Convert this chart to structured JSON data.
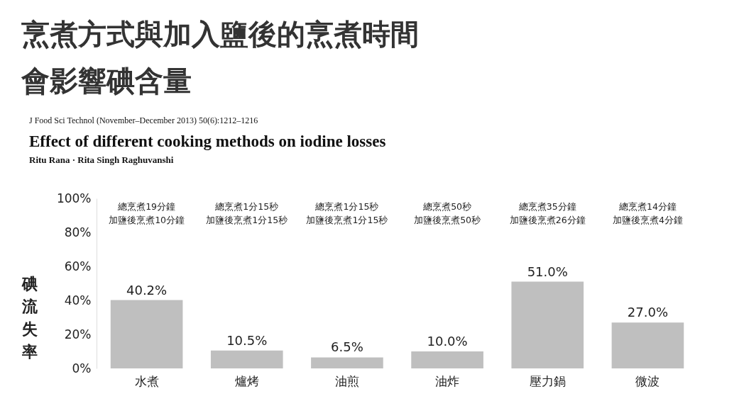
{
  "chart_data": {
    "type": "bar",
    "title": "烹煮方式與加入鹽後的烹煮時間",
    "subtitle": "會影響碘含量",
    "ylabel": "碘流失率",
    "categories": [
      "水煮",
      "爐烤",
      "油煎",
      "油炸",
      "壓力鍋",
      "微波"
    ],
    "values": [
      40.2,
      10.5,
      6.5,
      10.0,
      51.0,
      27.0
    ],
    "value_labels": [
      "40.2%",
      "10.5%",
      "6.5%",
      "10.0%",
      "51.0%",
      "27.0%"
    ],
    "color": "#bfbfbf",
    "ylim": [
      0,
      100
    ],
    "yticks": [
      {
        "value": 0,
        "label": "0%"
      },
      {
        "value": 20,
        "label": "20%"
      },
      {
        "value": 40,
        "label": "40%"
      },
      {
        "value": 60,
        "label": "60%"
      },
      {
        "value": 80,
        "label": "80%"
      },
      {
        "value": 100,
        "label": "100%"
      }
    ],
    "grid": false,
    "annotations": [
      "J Food Sci Technol (November–December 2013) 50(6):1212–1216",
      "Effect of different cooking methods on iodine losses",
      "Ritu Rana · Rita Singh Raghuvanshi",
      "總烹煮19分鐘",
      "加鹽後烹煮10分鐘",
      "總烹煮1分15秒",
      "加鹽後烹煮1分15秒",
      "總烹煮1分15秒",
      "加鹽後烹煮1分15秒",
      "總烹煮50秒",
      "加鹽後烹煮50秒",
      "總烹煮35分鐘",
      "加鹽後烹煮26分鐘",
      "總烹煮14分鐘",
      "加鹽後烹煮4分鐘"
    ]
  }
}
